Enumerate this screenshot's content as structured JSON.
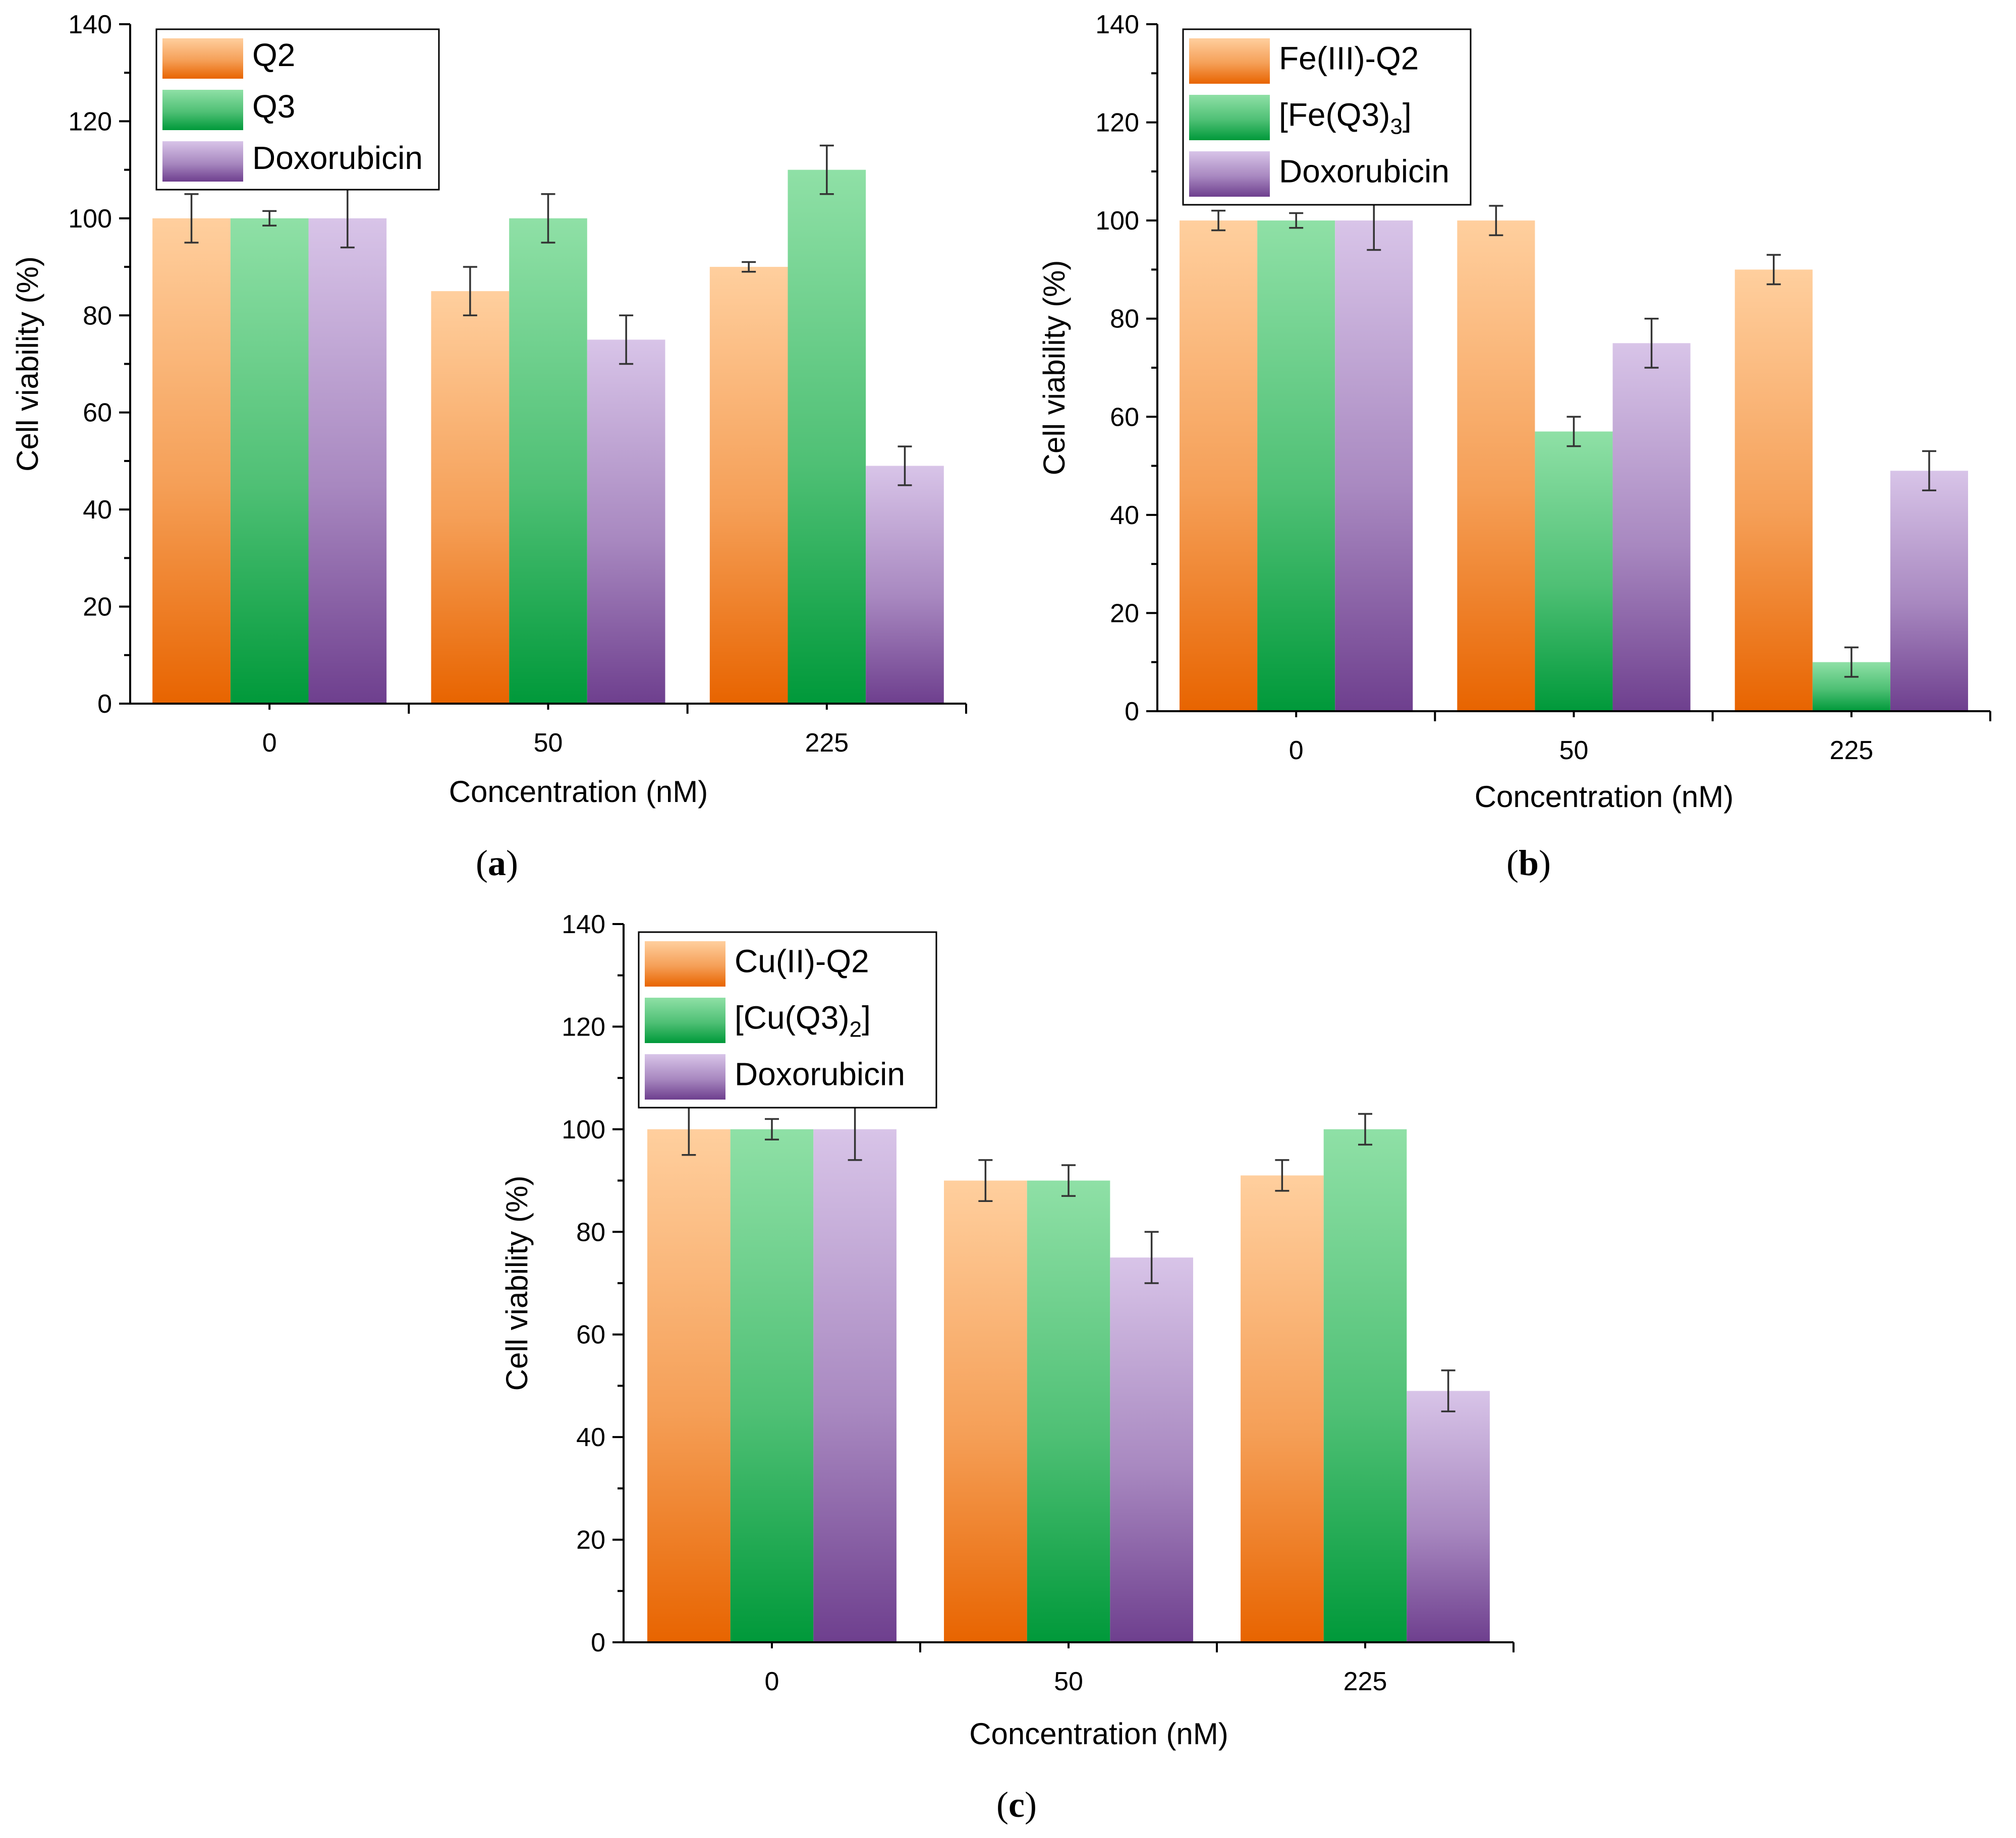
{
  "colors": {
    "orange_top": "#ffcf9e",
    "orange_bottom": "#e86400",
    "green_top": "#8fe0a6",
    "green_bottom": "#00993a",
    "purple_top": "#d8c4e8",
    "purple_bottom": "#6e3f8e"
  },
  "chart_data": [
    {
      "id": "a",
      "type": "bar",
      "panel_label": "a",
      "xlabel": "Concentration (nM)",
      "ylabel": "Cell viability (%)",
      "ylim": [
        0,
        140
      ],
      "yticks": [
        "0",
        "20",
        "40",
        "60",
        "80",
        "100",
        "120",
        "140"
      ],
      "categories": [
        "0",
        "50",
        "225"
      ],
      "legend_position": "top-left",
      "series": [
        {
          "name": "Q2",
          "sub": "",
          "suffix": "",
          "color": "orange",
          "values": [
            100,
            85,
            90
          ],
          "errors": [
            5,
            5,
            1
          ]
        },
        {
          "name": "Q3",
          "sub": "",
          "suffix": "",
          "color": "green",
          "values": [
            100,
            100,
            110
          ],
          "errors": [
            1.5,
            5,
            5
          ]
        },
        {
          "name": "Doxorubicin",
          "sub": "",
          "suffix": "",
          "color": "purple",
          "values": [
            100,
            75,
            49
          ],
          "errors": [
            6,
            5,
            4
          ]
        }
      ]
    },
    {
      "id": "b",
      "type": "bar",
      "panel_label": "b",
      "xlabel": "Concentration (nM)",
      "ylabel": "Cell viability (%)",
      "ylim": [
        0,
        140
      ],
      "yticks": [
        "0",
        "20",
        "40",
        "60",
        "80",
        "100",
        "120",
        "140"
      ],
      "categories": [
        "0",
        "50",
        "225"
      ],
      "legend_position": "top-left",
      "series": [
        {
          "name": "Fe(III)-Q2",
          "sub": "",
          "suffix": "",
          "color": "orange",
          "values": [
            100,
            100,
            90
          ],
          "errors": [
            2,
            3,
            3
          ]
        },
        {
          "name": "[Fe(Q3)",
          "sub": "3",
          "suffix": "]",
          "color": "green",
          "values": [
            100,
            57,
            10
          ],
          "errors": [
            1.5,
            3,
            3
          ]
        },
        {
          "name": "Doxorubicin",
          "sub": "",
          "suffix": "",
          "color": "purple",
          "values": [
            100,
            75,
            49
          ],
          "errors": [
            6,
            5,
            4
          ]
        }
      ]
    },
    {
      "id": "c",
      "type": "bar",
      "panel_label": "c",
      "xlabel": "Concentration (nM)",
      "ylabel": "Cell viability (%)",
      "ylim": [
        0,
        140
      ],
      "yticks": [
        "0",
        "20",
        "40",
        "60",
        "80",
        "100",
        "120",
        "140"
      ],
      "categories": [
        "0",
        "50",
        "225"
      ],
      "legend_position": "top-left",
      "series": [
        {
          "name": "Cu(II)-Q2",
          "sub": "",
          "suffix": "",
          "color": "orange",
          "values": [
            100,
            90,
            91
          ],
          "errors": [
            5,
            4,
            3
          ]
        },
        {
          "name": "[Cu(Q3)",
          "sub": "2",
          "suffix": "]",
          "color": "green",
          "values": [
            100,
            90,
            100
          ],
          "errors": [
            2,
            3,
            3
          ]
        },
        {
          "name": "Doxorubicin",
          "sub": "",
          "suffix": "",
          "color": "purple",
          "values": [
            100,
            75,
            49
          ],
          "errors": [
            6,
            5,
            4
          ]
        }
      ]
    }
  ]
}
